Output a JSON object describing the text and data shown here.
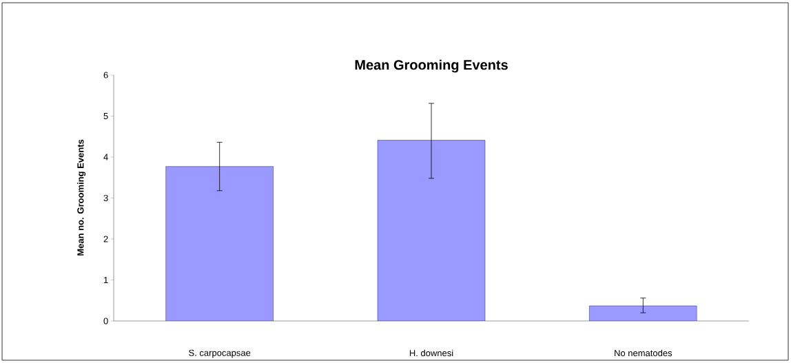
{
  "chart_data": {
    "type": "bar",
    "title": "Mean Grooming Events",
    "ylabel": "Mean no. Grooming Events",
    "categories": [
      "S. carpocapsae",
      "H. downesi",
      "No nematodes"
    ],
    "values": [
      3.77,
      4.41,
      0.37
    ],
    "errors": [
      [
        3.18,
        4.36
      ],
      [
        3.48,
        5.31
      ],
      [
        0.2,
        0.56
      ]
    ],
    "color": "#9999ff",
    "ylim": [
      0,
      6
    ],
    "yticks": [
      0,
      1,
      2,
      3,
      4,
      5,
      6
    ],
    "grid": false
  }
}
